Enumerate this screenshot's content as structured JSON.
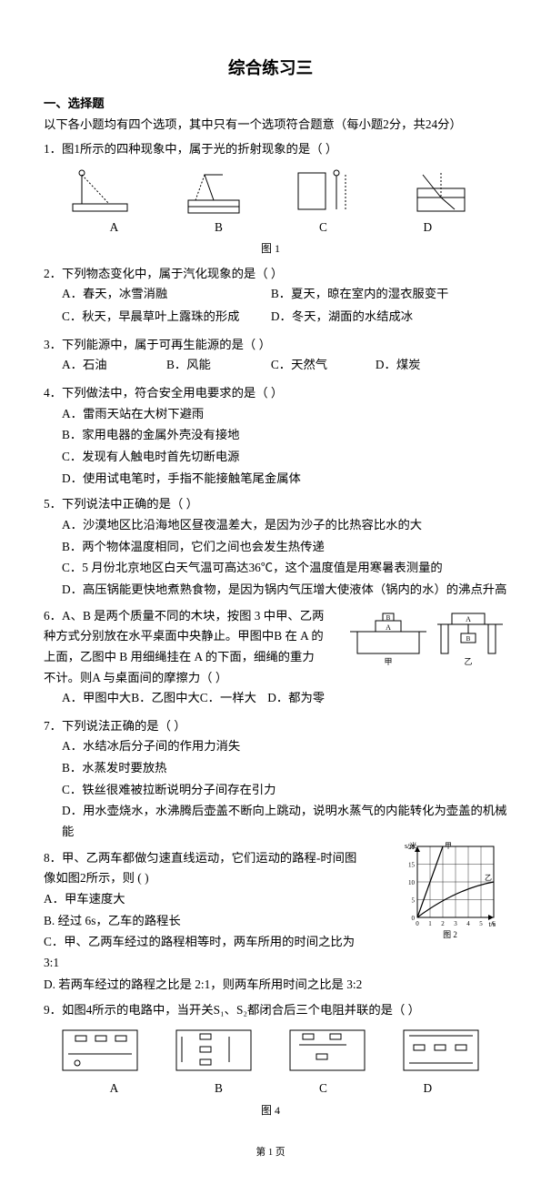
{
  "title": "综合练习三",
  "section1": {
    "head": "一、选择题",
    "hint": "以下各小题均有四个选项，其中只有一个选项符合题意（每小题2分，共24分）"
  },
  "q1": {
    "stem": "1．图1所示的四种现象中，属于光的折射现象的是（    ）",
    "opts": [
      "A",
      "B",
      "C",
      "D"
    ],
    "fig_label": "图 1"
  },
  "q2": {
    "stem": "2．下列物态变化中，属于汽化现象的是（    ）",
    "A": "A．春天，冰雪消融",
    "B": "B．夏天，晾在室内的湿衣服变干",
    "C": "C．秋天，早晨草叶上露珠的形成",
    "D": "D．冬天，湖面的水结成冰"
  },
  "q3": {
    "stem": "3．下列能源中，属于可再生能源的是（    ）",
    "A": "A．石油",
    "B": "B．风能",
    "C": "C．天然气",
    "D": "D．煤炭"
  },
  "q4": {
    "stem": "4．下列做法中，符合安全用电要求的是（    ）",
    "A": "A．雷雨天站在大树下避雨",
    "B": "B．家用电器的金属外壳没有接地",
    "C": "C．发现有人触电时首先切断电源",
    "D": "D．使用试电笔时，手指不能接触笔尾金属体"
  },
  "q5": {
    "stem": "5．下列说法中正确的是（    ）",
    "A": "A．沙漠地区比沿海地区昼夜温差大，是因为沙子的比热容比水的大",
    "B": "B．两个物体温度相同，它们之间也会发生热传递",
    "C": "C．5 月份北京地区白天气温可高达36℃，这个温度值是用寒暑表测量的",
    "D": "D．高压锅能更快地煮熟食物，是因为锅内气压增大使液体（锅内的水）的沸点升高"
  },
  "q6": {
    "stem": "6．A、B 是两个质量不同的木块，按图 3 中甲、乙两种方式分别放在水平桌面中央静止。甲图中B 在 A 的上面，乙图中 B 用细绳挂在 A 的下面，细绳的重力不计。则A 与桌面间的摩擦力（    ）",
    "A": "A．甲图中大",
    "B": "B．乙图中大",
    "C": "C．一样大",
    "D": "D．都为零",
    "fig": {
      "labels": {
        "A": "A",
        "B": "B",
        "jia": "甲",
        "yi": "乙"
      }
    }
  },
  "q7": {
    "stem": "7．下列说法正确的是（    ）",
    "A": "A．水结冰后分子间的作用力消失",
    "B": "B．水蒸发时要放热",
    "C": "C．铁丝很难被拉断说明分子间存在引力",
    "D": "D．用水壶烧水，水沸腾后壶盖不断向上跳动，说明水蒸气的内能转化为壶盖的机械能"
  },
  "q8": {
    "stem": "8．甲、乙两车都做匀速直线运动，它们运动的路程-时间图像如图2所示，则 (    )",
    "A": "A．甲车速度大",
    "B": "B. 经过 6s，乙车的路程长",
    "C": "C．甲、乙两车经过的路程相等时，两车所用的时间之比为 3:1",
    "D": "D. 若两车经过的路程之比是 2:1，则两车所用时间之比是 3:2",
    "chart": {
      "xlabel": "t/s",
      "ylabel": "s/米",
      "jia": "甲",
      "yi": "乙",
      "fig_label": "图 2",
      "xticks": [
        0,
        1,
        2,
        3,
        4,
        5,
        6
      ],
      "yticks": [
        0,
        5,
        10,
        15,
        20
      ],
      "ymax": 20,
      "xmax": 6,
      "grid_color": "#000",
      "bg": "#fff",
      "line_color": "#000"
    }
  },
  "q9": {
    "stem": "9．如图4所示的电路中，当开关S₁、S₂都闭合后三个电阻并联的是（    ）",
    "opts": [
      "A",
      "B",
      "C",
      "D"
    ],
    "fig_label": "图 4"
  },
  "footer": "第 1 页"
}
